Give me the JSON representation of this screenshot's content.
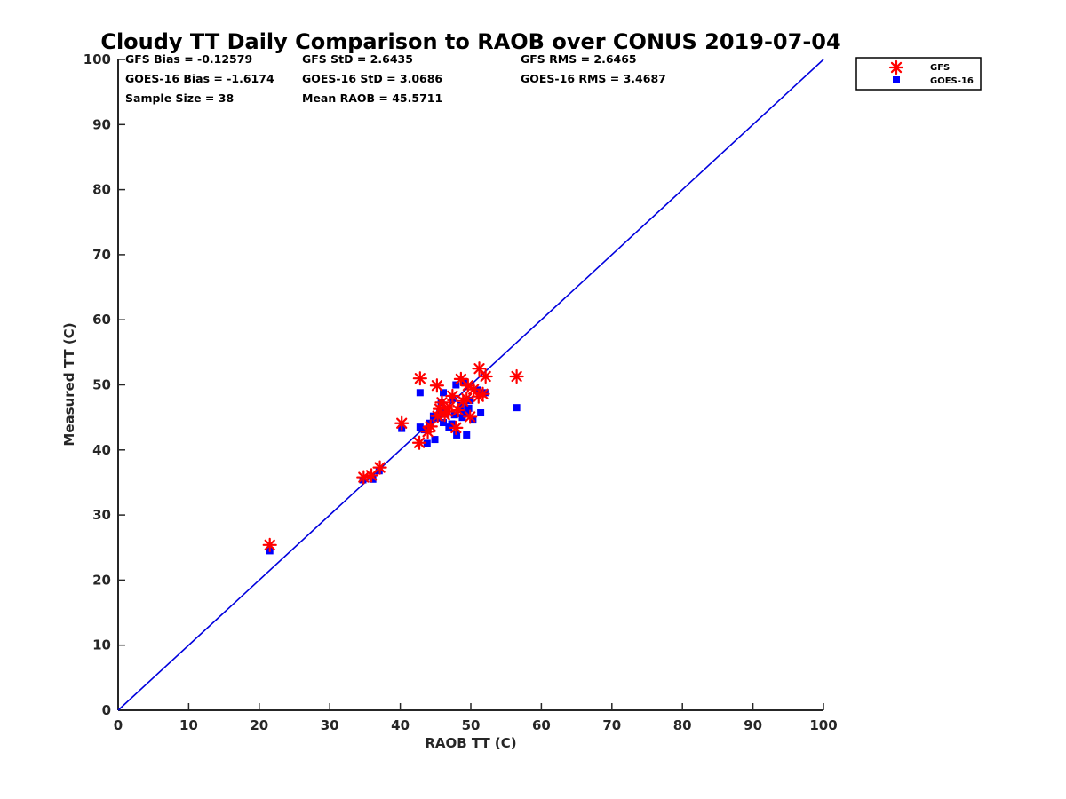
{
  "chart_data": {
    "type": "scatter",
    "title": "Cloudy TT Daily Comparison to RAOB over CONUS 2019-07-04",
    "xlabel": "RAOB TT (C)",
    "ylabel": "Measured TT (C)",
    "xlim": [
      0,
      100
    ],
    "ylim": [
      0,
      100
    ],
    "xticks": [
      0,
      10,
      20,
      30,
      40,
      50,
      60,
      70,
      80,
      90,
      100
    ],
    "yticks": [
      0,
      10,
      20,
      30,
      40,
      50,
      60,
      70,
      80,
      90,
      100
    ],
    "grid": false,
    "legend_position": "top-right",
    "reference_line": {
      "x": [
        0,
        100
      ],
      "y": [
        0,
        100
      ],
      "color": "#0000dd"
    },
    "stats": {
      "gfs_bias": "GFS Bias = -0.12579",
      "gfs_std": "GFS StD = 2.6435",
      "gfs_rms": "GFS RMS = 2.6465",
      "goes_bias": "GOES-16 Bias = -1.6174",
      "goes_std": "GOES-16 StD = 3.0686",
      "goes_rms": "GOES-16 RMS = 3.4687",
      "sample_size": "Sample Size = 38",
      "mean_raob": "Mean RAOB = 45.5711"
    },
    "series": [
      {
        "name": "GFS",
        "marker": "asterisk",
        "color": "#ff0000",
        "points": [
          [
            21.5,
            25.4
          ],
          [
            34.8,
            35.8
          ],
          [
            35.9,
            36.1
          ],
          [
            37.1,
            37.3
          ],
          [
            40.2,
            44.1
          ],
          [
            42.8,
            51.0
          ],
          [
            42.7,
            41.1
          ],
          [
            43.9,
            42.8
          ],
          [
            44.3,
            43.6
          ],
          [
            45.2,
            49.9
          ],
          [
            45.6,
            46.3
          ],
          [
            45.9,
            47.3
          ],
          [
            46.3,
            45.4
          ],
          [
            47.0,
            46.6
          ],
          [
            47.4,
            48.3
          ],
          [
            47.9,
            43.4
          ],
          [
            48.6,
            50.9
          ],
          [
            48.9,
            47.5
          ],
          [
            49.4,
            47.9
          ],
          [
            49.9,
            45.1
          ],
          [
            50.4,
            49.3
          ],
          [
            51.2,
            52.5
          ],
          [
            51.1,
            48.2
          ],
          [
            51.7,
            48.6
          ],
          [
            52.1,
            51.3
          ],
          [
            56.5,
            51.3
          ],
          [
            48.2,
            46.1
          ],
          [
            46.7,
            45.9
          ],
          [
            45.3,
            45.2
          ],
          [
            49.6,
            49.9
          ]
        ]
      },
      {
        "name": "GOES-16",
        "marker": "square",
        "color": "#0000ff",
        "points": [
          [
            21.5,
            24.5
          ],
          [
            34.7,
            35.4
          ],
          [
            36.1,
            35.5
          ],
          [
            37.0,
            36.8
          ],
          [
            40.2,
            43.3
          ],
          [
            42.8,
            48.8
          ],
          [
            42.8,
            43.5
          ],
          [
            43.4,
            43.1
          ],
          [
            43.8,
            41.0
          ],
          [
            44.2,
            44.1
          ],
          [
            44.9,
            41.6
          ],
          [
            45.1,
            44.9
          ],
          [
            45.4,
            45.2
          ],
          [
            45.8,
            47.3
          ],
          [
            46.1,
            48.8
          ],
          [
            46.1,
            44.2
          ],
          [
            46.5,
            45.5
          ],
          [
            46.9,
            43.5
          ],
          [
            47.3,
            44.0
          ],
          [
            47.7,
            45.4
          ],
          [
            47.9,
            50.0
          ],
          [
            48.0,
            42.3
          ],
          [
            48.4,
            46.2
          ],
          [
            48.8,
            45.0
          ],
          [
            49.0,
            50.5
          ],
          [
            49.3,
            45.7
          ],
          [
            49.4,
            42.3
          ],
          [
            49.7,
            46.4
          ],
          [
            50.3,
            44.6
          ],
          [
            51.0,
            49.2
          ],
          [
            51.4,
            45.7
          ],
          [
            52.0,
            48.8
          ],
          [
            56.5,
            46.5
          ],
          [
            45.6,
            45.8
          ],
          [
            47.4,
            47.9
          ],
          [
            48.6,
            46.8
          ],
          [
            44.7,
            45.2
          ],
          [
            49.9,
            47.6
          ]
        ]
      }
    ]
  }
}
